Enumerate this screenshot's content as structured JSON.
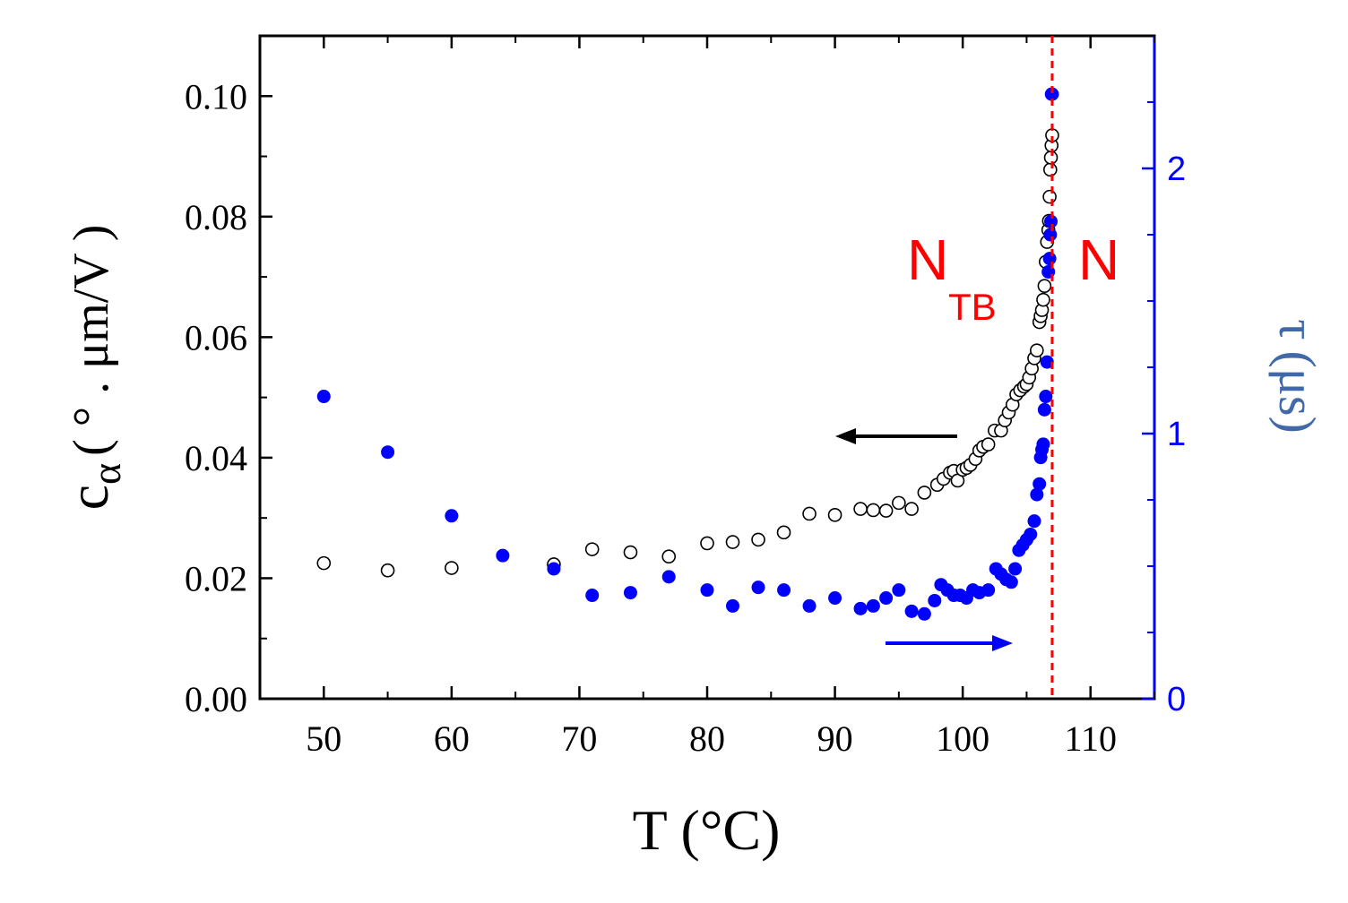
{
  "chart_data": {
    "type": "scatter",
    "xlabel": "T (°C)",
    "ylabel_left": {
      "symbol": "c",
      "subscript": "α",
      "units": "( ° . μm/V )"
    },
    "ylabel_right": {
      "symbol": "τ",
      "units": "(μs)"
    },
    "xlim": [
      45,
      115
    ],
    "ylim_left": [
      0,
      0.11
    ],
    "ylim_right": [
      0,
      2.5
    ],
    "x_ticks": [
      50,
      60,
      70,
      80,
      90,
      100,
      110
    ],
    "x_tick_labels": [
      "50",
      "60",
      "70",
      "80",
      "90",
      "100",
      "110"
    ],
    "y_left_ticks": [
      0,
      0.02,
      0.04,
      0.06,
      0.08,
      0.1
    ],
    "y_left_tick_labels": [
      "0.00",
      "0.02",
      "0.04",
      "0.06",
      "0.08",
      "0.10"
    ],
    "y_right_ticks": [
      0,
      1,
      2
    ],
    "y_right_tick_labels": [
      "0",
      "1",
      "2"
    ],
    "transition_temperature": 107,
    "phase_labels": {
      "left_main": "N",
      "left_sub": "TB",
      "right": "N"
    },
    "colors": {
      "left_series": "#000000",
      "right_series": "#0000ff",
      "right_axis": "#0000ff",
      "transition": "#ff0000",
      "tau_label": "#4169a8"
    },
    "series": [
      {
        "name": "c_alpha",
        "axis": "left",
        "marker": "open-circle",
        "x": [
          50,
          55,
          60,
          68,
          71,
          74,
          77,
          80,
          82,
          84,
          86,
          88,
          90,
          92,
          93,
          94,
          95,
          96,
          97,
          98,
          98.5,
          99,
          99.3,
          99.6,
          100,
          100.3,
          100.6,
          101,
          101.3,
          101.6,
          102,
          102.5,
          103,
          103.3,
          103.6,
          103.9,
          104.2,
          104.5,
          104.8,
          105,
          105.2,
          105.4,
          105.6,
          105.8,
          106,
          106.1,
          106.2,
          106.3,
          106.4,
          106.5,
          106.6,
          106.7,
          106.75,
          106.8,
          106.85,
          106.9,
          106.95,
          107
        ],
        "y": [
          0.0225,
          0.0213,
          0.0217,
          0.0223,
          0.0248,
          0.0243,
          0.0236,
          0.0258,
          0.026,
          0.0264,
          0.0276,
          0.0307,
          0.0305,
          0.0315,
          0.0313,
          0.0312,
          0.0325,
          0.0315,
          0.0342,
          0.0355,
          0.0365,
          0.0375,
          0.0378,
          0.0362,
          0.038,
          0.0383,
          0.0388,
          0.0398,
          0.0412,
          0.0418,
          0.0422,
          0.0445,
          0.0445,
          0.0462,
          0.0475,
          0.0488,
          0.0505,
          0.0512,
          0.0518,
          0.0522,
          0.0533,
          0.0548,
          0.0565,
          0.0578,
          0.0625,
          0.0635,
          0.0645,
          0.0662,
          0.0685,
          0.0725,
          0.0758,
          0.0778,
          0.0793,
          0.0833,
          0.0878,
          0.0898,
          0.0918,
          0.0935
        ]
      },
      {
        "name": "tau",
        "axis": "right",
        "marker": "filled-circle",
        "x": [
          50,
          55,
          60,
          64,
          68,
          71,
          74,
          77,
          80,
          82,
          84,
          86,
          88,
          90,
          92,
          93,
          94,
          95,
          96,
          97,
          97.8,
          98.3,
          98.8,
          99.3,
          99.8,
          100.3,
          100.8,
          101.3,
          102,
          102.6,
          103,
          103.4,
          103.8,
          104.1,
          104.4,
          104.7,
          105,
          105.3,
          105.6,
          105.8,
          106,
          106.1,
          106.2,
          106.3,
          106.4,
          106.5,
          106.6,
          106.7,
          106.8,
          106.85,
          106.9,
          106.95,
          107
        ],
        "y": [
          1.14,
          0.93,
          0.69,
          0.54,
          0.49,
          0.39,
          0.4,
          0.46,
          0.41,
          0.35,
          0.42,
          0.41,
          0.35,
          0.38,
          0.34,
          0.35,
          0.38,
          0.41,
          0.33,
          0.32,
          0.37,
          0.43,
          0.41,
          0.39,
          0.39,
          0.38,
          0.41,
          0.4,
          0.41,
          0.49,
          0.47,
          0.45,
          0.44,
          0.49,
          0.56,
          0.58,
          0.6,
          0.62,
          0.67,
          0.77,
          0.81,
          0.91,
          0.94,
          0.96,
          1.09,
          1.14,
          1.27,
          1.61,
          1.66,
          1.75,
          1.8,
          2.28,
          2.28
        ]
      }
    ],
    "arrows": [
      {
        "series": "c_alpha",
        "direction": "left"
      },
      {
        "series": "tau",
        "direction": "right"
      }
    ]
  }
}
